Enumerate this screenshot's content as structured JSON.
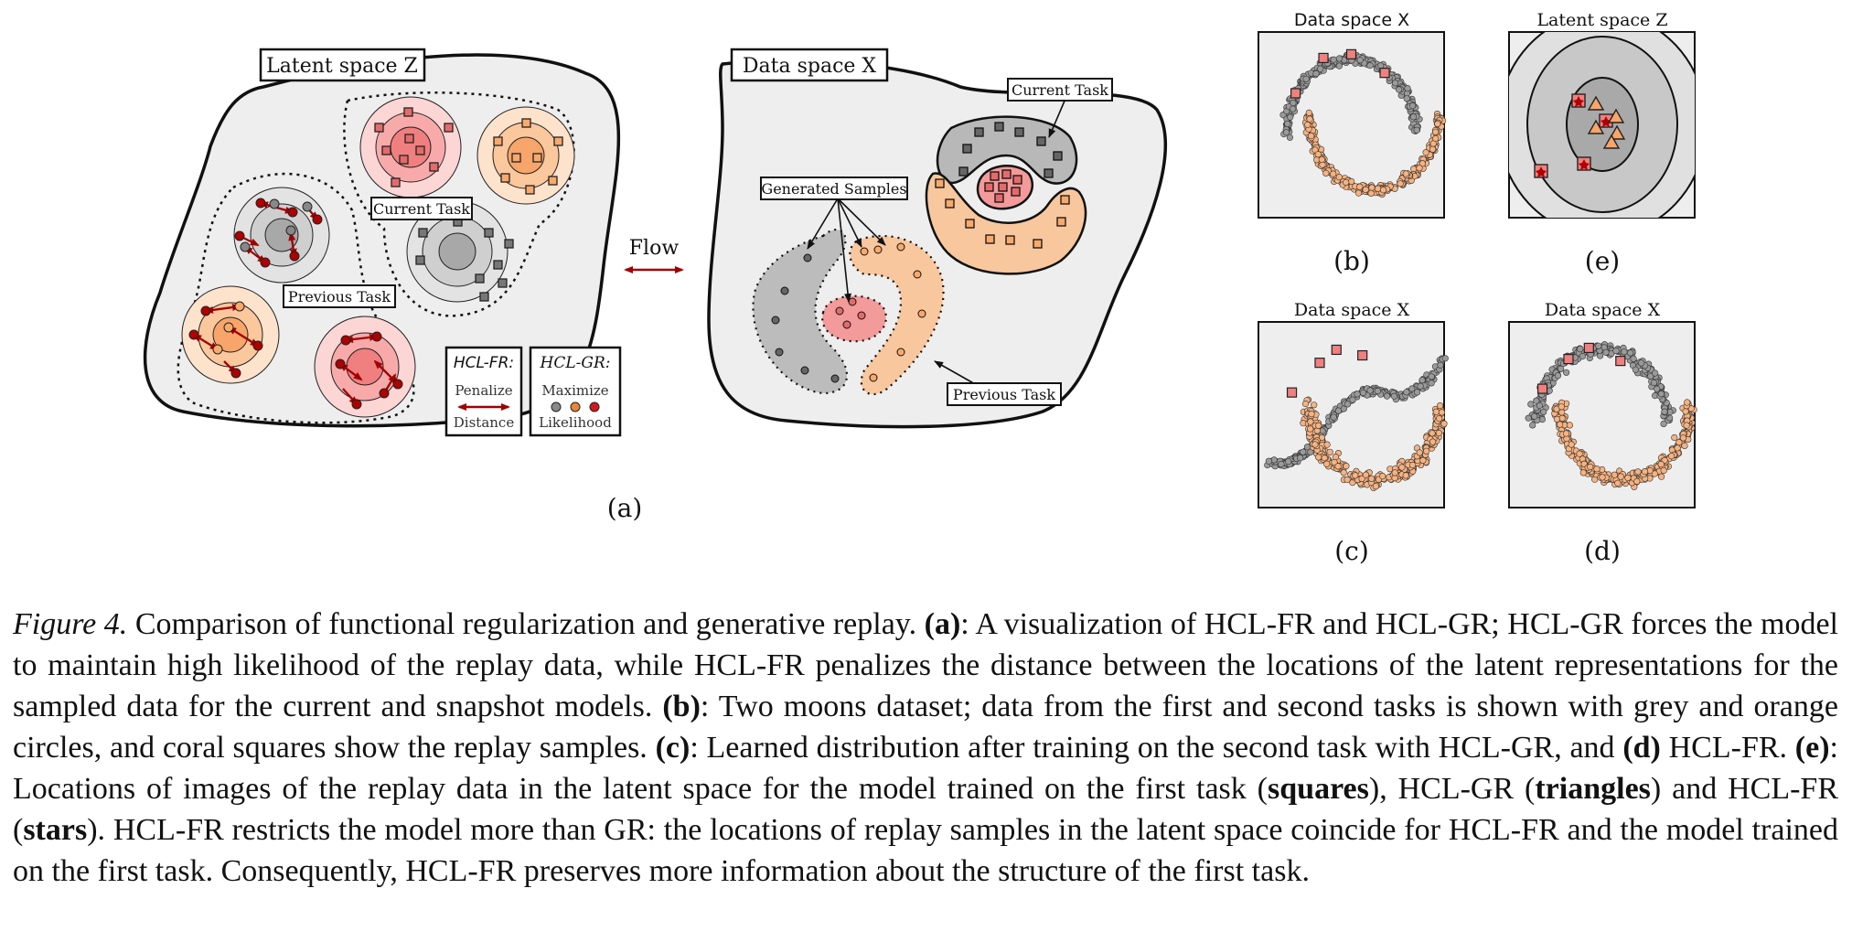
{
  "panel_a": {
    "latent_title": "Latent space Z",
    "data_title": "Data space X",
    "current_task": "Current Task",
    "previous_task": "Previous Task",
    "generated_samples": "Generated Samples",
    "flow": "Flow",
    "fr_title": "HCL-FR:",
    "fr_line1": "Penalize",
    "fr_line2": "Distance",
    "gr_title": "HCL-GR:",
    "gr_line1": "Maximize",
    "gr_line2": "Likelihood",
    "label": "(a)"
  },
  "small_plots": {
    "b": {
      "title": "Data space X",
      "label": "(b)"
    },
    "e": {
      "title": "Latent space Z",
      "label": "(e)"
    },
    "c": {
      "title": "Data space X",
      "label": "(c)"
    },
    "d": {
      "title": "Data space X",
      "label": "(d)"
    }
  },
  "caption": {
    "figure_label": "Figure 4.",
    "p1": " Comparison of functional regularization and generative replay. ",
    "a": "(a)",
    "p2": ": A visualization of HCL-FR and HCL-GR; HCL-GR forces the model to maintain high likelihood of the replay data, while HCL-FR penalizes the distance between the locations of the latent representations for the sampled data for the current and snapshot models. ",
    "b": "(b)",
    "p3": ": Two moons dataset; data from the first and second tasks is shown with grey and orange circles, and coral squares show the replay samples. ",
    "c": "(c)",
    "p4": ": Learned distribution after training on the second task with HCL-GR, and ",
    "d": "(d)",
    "p5": " HCL-FR. ",
    "e": "(e)",
    "p6": ": Locations of images of the replay data in the latent space for the model trained on the first task (",
    "squares": "squares",
    "p7": "), HCL-GR (",
    "triangles": "triangles",
    "p8": ") and HCL-FR (",
    "stars": "stars",
    "p9": "). HCL-FR restricts the model more than GR: the locations of replay samples in the latent space coincide for HCL-FR and the model trained on the first task. Consequently, HCL-FR preserves more information about the structure of the first task."
  },
  "colors": {
    "grey": "#9a9a9a",
    "orange": "#f7b27f",
    "coral": "#f08080",
    "dark_red": "#b00000",
    "bg": "#eeeeee"
  }
}
